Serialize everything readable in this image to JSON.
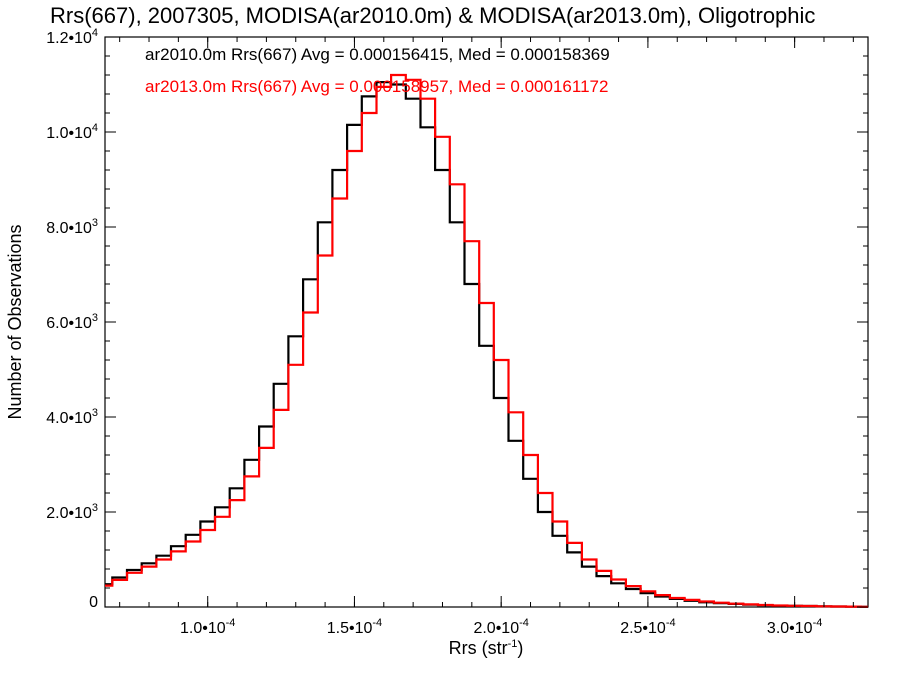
{
  "chart_data": {
    "type": "line",
    "title": "Rrs(667), 2007305, MODISA(ar2010.0m) & MODISA(ar2013.0m), Oligotrophic",
    "xlabel": "Rrs (str",
    "xlabel_sup": "-1",
    "xlabel_close": ")",
    "ylabel": "Number of Observations",
    "xlim": [
      6.5e-05,
      0.000325
    ],
    "ylim": [
      0,
      12000
    ],
    "x_ticks": [
      {
        "value": 0.0001,
        "mantissa": "1.0",
        "exponent": "-4"
      },
      {
        "value": 0.00015,
        "mantissa": "1.5",
        "exponent": "-4"
      },
      {
        "value": 0.0002,
        "mantissa": "2.0",
        "exponent": "-4"
      },
      {
        "value": 0.00025,
        "mantissa": "2.5",
        "exponent": "-4"
      },
      {
        "value": 0.0003,
        "mantissa": "3.0",
        "exponent": "-4"
      }
    ],
    "y_ticks": [
      {
        "value": 0,
        "mantissa": "0",
        "exponent": ""
      },
      {
        "value": 2000,
        "mantissa": "2.0",
        "exponent": "3"
      },
      {
        "value": 4000,
        "mantissa": "4.0",
        "exponent": "3"
      },
      {
        "value": 6000,
        "mantissa": "6.0",
        "exponent": "3"
      },
      {
        "value": 8000,
        "mantissa": "8.0",
        "exponent": "3"
      },
      {
        "value": 10000,
        "mantissa": "1.0",
        "exponent": "4"
      },
      {
        "value": 12000,
        "mantissa": "1.2",
        "exponent": "4"
      }
    ],
    "grid": false,
    "legend_position": "top-left",
    "annotations": [
      {
        "text": "ar2010.0m Rrs(667) Avg = 0.000156415, Med = 0.000158369",
        "color": "#000000"
      },
      {
        "text": "ar2013.0m Rrs(667) Avg = 0.000158957, Med = 0.000161172",
        "color": "#ff0000"
      }
    ],
    "series": [
      {
        "color": "#000000",
        "x": [
          6.5e-05,
          7e-05,
          7.5e-05,
          8e-05,
          8.5e-05,
          9e-05,
          9.5e-05,
          0.0001,
          0.000105,
          0.00011,
          0.000115,
          0.00012,
          0.000125,
          0.00013,
          0.000135,
          0.00014,
          0.000145,
          0.00015,
          0.000155,
          0.00016,
          0.000165,
          0.00017,
          0.000175,
          0.00018,
          0.000185,
          0.00019,
          0.000195,
          0.0002,
          0.000205,
          0.00021,
          0.000215,
          0.00022,
          0.000225,
          0.00023,
          0.000235,
          0.00024,
          0.000245,
          0.00025,
          0.000255,
          0.00026,
          0.000265,
          0.00027,
          0.000275,
          0.00028,
          0.000285,
          0.00029,
          0.000295,
          0.0003,
          0.000305,
          0.00031,
          0.000315,
          0.00032,
          0.000325
        ],
        "y": [
          480,
          620,
          780,
          920,
          1080,
          1280,
          1520,
          1800,
          2100,
          2500,
          3100,
          3800,
          4700,
          5700,
          6900,
          8100,
          9200,
          10150,
          10750,
          11050,
          11000,
          10700,
          10100,
          9200,
          8100,
          6800,
          5500,
          4400,
          3500,
          2700,
          2000,
          1500,
          1150,
          850,
          650,
          500,
          380,
          290,
          220,
          170,
          130,
          100,
          80,
          65,
          50,
          40,
          30,
          25,
          20,
          15,
          10,
          8,
          5
        ]
      },
      {
        "color": "#ff0000",
        "x": [
          6.5e-05,
          7e-05,
          7.5e-05,
          8e-05,
          8.5e-05,
          9e-05,
          9.5e-05,
          0.0001,
          0.000105,
          0.00011,
          0.000115,
          0.00012,
          0.000125,
          0.00013,
          0.000135,
          0.00014,
          0.000145,
          0.00015,
          0.000155,
          0.00016,
          0.000165,
          0.00017,
          0.000175,
          0.00018,
          0.000185,
          0.00019,
          0.000195,
          0.0002,
          0.000205,
          0.00021,
          0.000215,
          0.00022,
          0.000225,
          0.00023,
          0.000235,
          0.00024,
          0.000245,
          0.00025,
          0.000255,
          0.00026,
          0.000265,
          0.00027,
          0.000275,
          0.00028,
          0.000285,
          0.00029,
          0.000295,
          0.0003,
          0.000305,
          0.00031,
          0.000315,
          0.00032,
          0.000325
        ],
        "y": [
          450,
          570,
          720,
          850,
          1000,
          1170,
          1380,
          1620,
          1900,
          2250,
          2750,
          3350,
          4150,
          5100,
          6200,
          7400,
          8600,
          9600,
          10400,
          10950,
          11200,
          11100,
          10700,
          9900,
          8900,
          7700,
          6400,
          5200,
          4100,
          3200,
          2400,
          1800,
          1350,
          1000,
          760,
          580,
          440,
          330,
          250,
          190,
          150,
          115,
          90,
          70,
          55,
          42,
          32,
          25,
          20,
          15,
          10,
          8,
          5
        ]
      }
    ]
  }
}
